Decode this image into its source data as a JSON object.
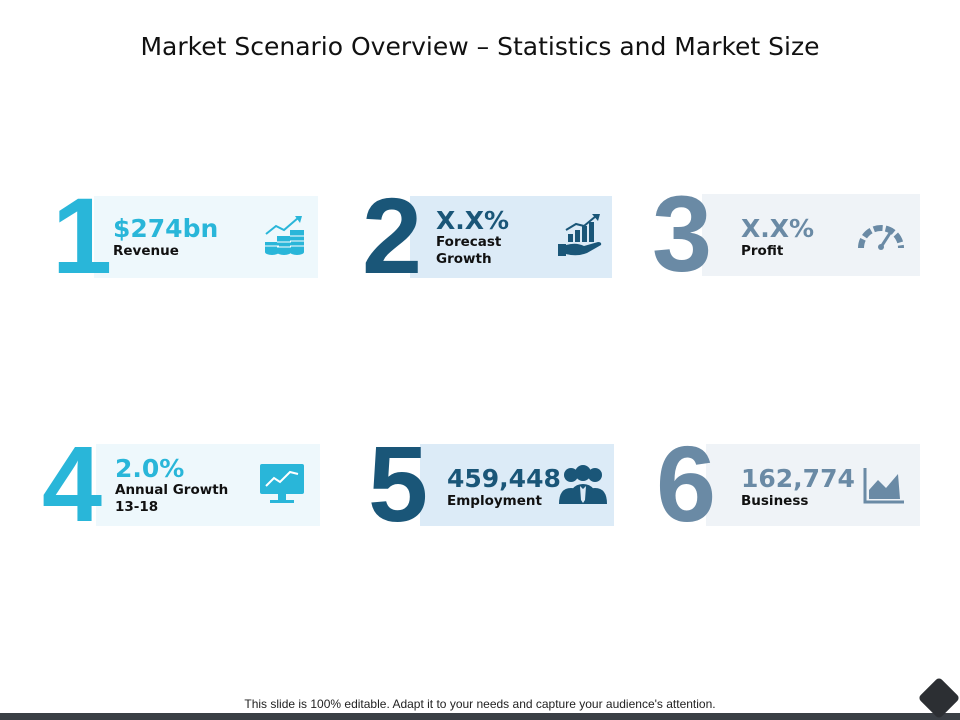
{
  "slide": {
    "title": "Market Scenario Overview – Statistics and Market Size",
    "footer": "This slide is 100% editable. Adapt it to your needs and capture your audience's attention."
  },
  "cards": [
    {
      "number": "1",
      "value": "$274bn",
      "label": "Revenue",
      "label2": "",
      "icon": "coins-growth-icon",
      "color": "#29b6d9",
      "bg": "#eef8fc"
    },
    {
      "number": "2",
      "value": "X.X%",
      "label": "Forecast",
      "label2": "Growth",
      "icon": "hand-chart-icon",
      "color": "#1a5678",
      "bg": "#dcebf7"
    },
    {
      "number": "3",
      "value": "X.X%",
      "label": "Profit",
      "label2": "",
      "icon": "speedometer-icon",
      "color": "#6a8aa5",
      "bg": "#eff3f7"
    },
    {
      "number": "4",
      "value": "2.0%",
      "label": "Annual Growth",
      "label2": "13-18",
      "icon": "monitor-chart-icon",
      "color": "#29b6d9",
      "bg": "#eef8fc"
    },
    {
      "number": "5",
      "value": "459,448",
      "label": "Employment",
      "label2": "",
      "icon": "people-icon",
      "color": "#1a5678",
      "bg": "#dcebf7"
    },
    {
      "number": "6",
      "value": "162,774",
      "label": "Business",
      "label2": "",
      "icon": "area-chart-icon",
      "color": "#6a8aa5",
      "bg": "#eff3f7"
    }
  ]
}
